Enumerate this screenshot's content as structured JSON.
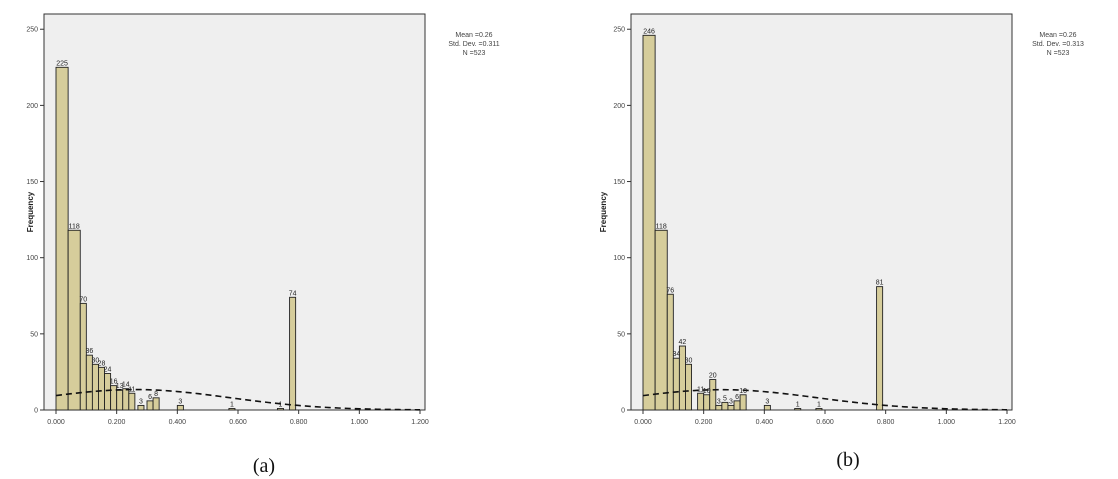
{
  "chart_data": [
    {
      "type": "bar",
      "caption": "(a)",
      "ylabel": "Frequency",
      "ylim": [
        0,
        260
      ],
      "xlim": [
        0,
        1.2
      ],
      "ytick_values": [
        0,
        50,
        100,
        150,
        200,
        250
      ],
      "ytick_labels": [
        "0",
        "50",
        "100",
        "150",
        "200",
        "250"
      ],
      "xtick_values": [
        0.0,
        0.2,
        0.4,
        0.6,
        0.8,
        1.0,
        1.2
      ],
      "xtick_labels": [
        "0.000",
        "0.200",
        "0.400",
        "0.600",
        "0.800",
        "1.000",
        "1.200"
      ],
      "stats": [
        "Mean =0.26",
        "Std. Dev. =0.311",
        "N =523"
      ],
      "bars": [
        {
          "x": 0.0,
          "width": 0.04,
          "value": 225,
          "label": "225"
        },
        {
          "x": 0.04,
          "width": 0.04,
          "value": 118,
          "label": "118"
        },
        {
          "x": 0.08,
          "width": 0.02,
          "value": 70,
          "label": "70"
        },
        {
          "x": 0.1,
          "width": 0.02,
          "value": 36,
          "label": "36"
        },
        {
          "x": 0.12,
          "width": 0.02,
          "value": 30,
          "label": "30"
        },
        {
          "x": 0.14,
          "width": 0.02,
          "value": 28,
          "label": "28"
        },
        {
          "x": 0.16,
          "width": 0.02,
          "value": 24,
          "label": "24"
        },
        {
          "x": 0.18,
          "width": 0.02,
          "value": 16,
          "label": "16"
        },
        {
          "x": 0.2,
          "width": 0.02,
          "value": 13,
          "label": "13"
        },
        {
          "x": 0.22,
          "width": 0.02,
          "value": 14,
          "label": "14"
        },
        {
          "x": 0.24,
          "width": 0.02,
          "value": 11,
          "label": "11"
        },
        {
          "x": 0.27,
          "width": 0.02,
          "value": 3,
          "label": "3"
        },
        {
          "x": 0.3,
          "width": 0.02,
          "value": 6,
          "label": "6"
        },
        {
          "x": 0.32,
          "width": 0.02,
          "value": 8,
          "label": "8"
        },
        {
          "x": 0.4,
          "width": 0.02,
          "value": 3,
          "label": "3"
        },
        {
          "x": 0.57,
          "width": 0.02,
          "value": 1,
          "label": "1"
        },
        {
          "x": 0.73,
          "width": 0.02,
          "value": 1,
          "label": "1"
        },
        {
          "x": 0.77,
          "width": 0.02,
          "value": 74,
          "label": "74"
        }
      ],
      "curve": {
        "mean": 0.26,
        "sd": 0.311,
        "n": 523,
        "binwidth": 0.02
      }
    },
    {
      "type": "bar",
      "caption": "(b)",
      "ylabel": "Frequency",
      "ylim": [
        0,
        260
      ],
      "xlim": [
        0,
        1.2
      ],
      "ytick_values": [
        0,
        50,
        100,
        150,
        200,
        250
      ],
      "ytick_labels": [
        "0",
        "50",
        "100",
        "150",
        "200",
        "250"
      ],
      "xtick_values": [
        0.0,
        0.2,
        0.4,
        0.6,
        0.8,
        1.0,
        1.2
      ],
      "xtick_labels": [
        "0.000",
        "0.200",
        "0.400",
        "0.600",
        "0.800",
        "1.000",
        "1.200"
      ],
      "stats": [
        "Mean =0.26",
        "Std. Dev. =0.313",
        "N =523"
      ],
      "bars": [
        {
          "x": 0.0,
          "width": 0.04,
          "value": 246,
          "label": "246"
        },
        {
          "x": 0.04,
          "width": 0.04,
          "value": 118,
          "label": "118"
        },
        {
          "x": 0.08,
          "width": 0.02,
          "value": 76,
          "label": "76"
        },
        {
          "x": 0.1,
          "width": 0.02,
          "value": 34,
          "label": "34"
        },
        {
          "x": 0.12,
          "width": 0.02,
          "value": 42,
          "label": "42"
        },
        {
          "x": 0.14,
          "width": 0.02,
          "value": 30,
          "label": "30"
        },
        {
          "x": 0.18,
          "width": 0.02,
          "value": 11,
          "label": "11"
        },
        {
          "x": 0.2,
          "width": 0.02,
          "value": 10,
          "label": "10"
        },
        {
          "x": 0.22,
          "width": 0.02,
          "value": 20,
          "label": "20"
        },
        {
          "x": 0.24,
          "width": 0.02,
          "value": 3,
          "label": "3"
        },
        {
          "x": 0.26,
          "width": 0.02,
          "value": 5,
          "label": "5"
        },
        {
          "x": 0.28,
          "width": 0.02,
          "value": 3,
          "label": "3"
        },
        {
          "x": 0.3,
          "width": 0.02,
          "value": 6,
          "label": "6"
        },
        {
          "x": 0.32,
          "width": 0.02,
          "value": 10,
          "label": "10"
        },
        {
          "x": 0.4,
          "width": 0.02,
          "value": 3,
          "label": "3"
        },
        {
          "x": 0.5,
          "width": 0.02,
          "value": 1,
          "label": "1"
        },
        {
          "x": 0.57,
          "width": 0.02,
          "value": 1,
          "label": "1"
        },
        {
          "x": 0.77,
          "width": 0.02,
          "value": 81,
          "label": "81"
        }
      ],
      "curve": {
        "mean": 0.26,
        "sd": 0.313,
        "n": 523,
        "binwidth": 0.02
      }
    }
  ]
}
